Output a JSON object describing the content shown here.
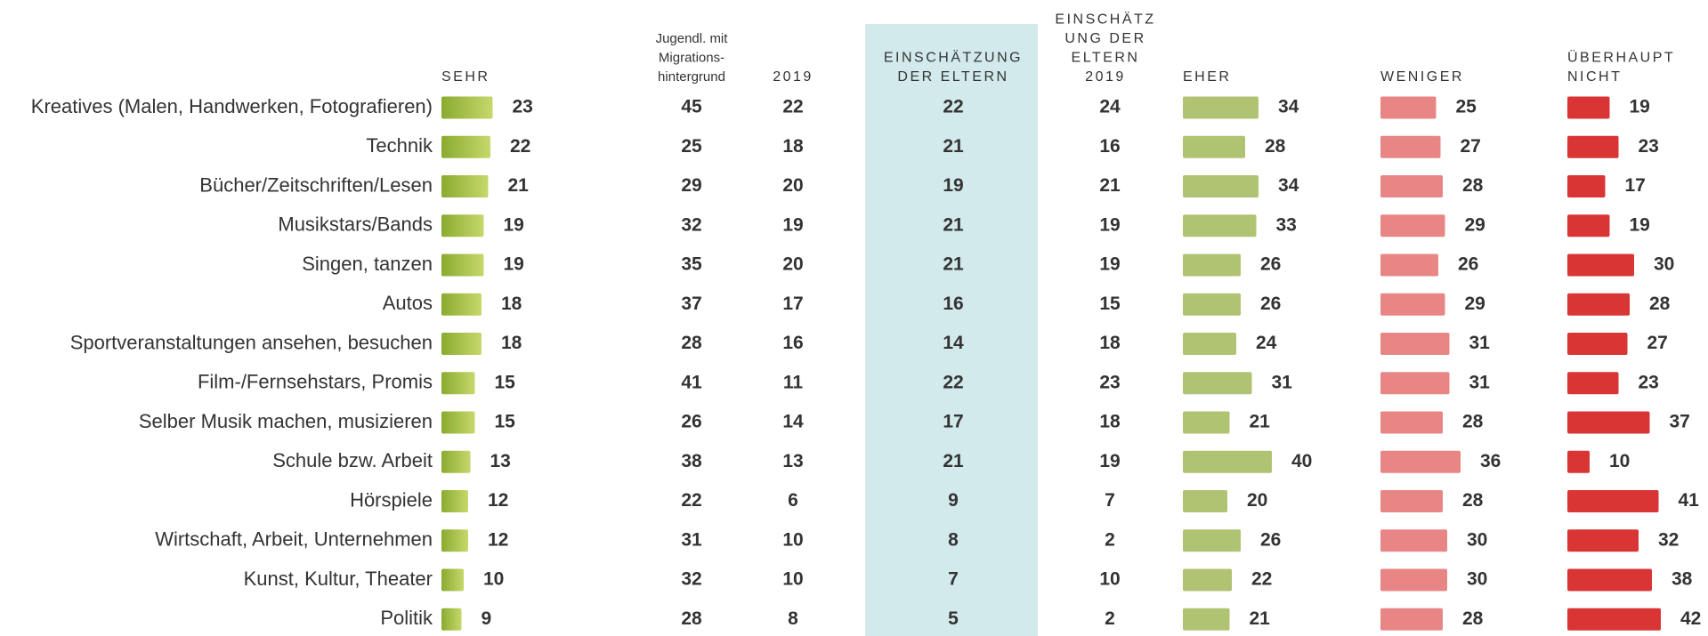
{
  "chart_data": {
    "type": "bar-table",
    "categories": [
      "Kreatives (Malen, Handwerken, Fotografieren)",
      "Technik",
      "Bücher/Zeitschriften/Lesen",
      "Musikstars/Bands",
      "Singen, tanzen",
      "Autos",
      "Sportveranstaltungen ansehen, besuchen",
      "Film-/Fernsehstars, Promis",
      "Selber Musik machen, musizieren",
      "Schule bzw. Arbeit",
      "Hörspiele",
      "Wirtschaft, Arbeit, Unternehmen",
      "Kunst, Kultur, Theater",
      "Politik"
    ],
    "columns": [
      {
        "header": [
          "SEHR"
        ],
        "color": [
          "#8aab2f",
          "#c6d86c"
        ],
        "values": [
          23,
          22,
          21,
          19,
          19,
          18,
          18,
          15,
          15,
          13,
          12,
          12,
          10,
          9
        ]
      },
      {
        "header": [
          "Jugendl. mit",
          "Migrations-",
          "hintergrund"
        ],
        "values": [
          45,
          25,
          29,
          32,
          35,
          37,
          28,
          41,
          26,
          38,
          22,
          31,
          32,
          28
        ]
      },
      {
        "header": [
          "2019"
        ],
        "values": [
          22,
          18,
          20,
          19,
          20,
          17,
          16,
          11,
          14,
          13,
          6,
          10,
          10,
          8
        ]
      },
      {
        "header": [
          "EINSCHÄTZUNG",
          "DER ELTERN"
        ],
        "highlight": "#d3eaec",
        "values": [
          22,
          21,
          19,
          21,
          21,
          16,
          14,
          22,
          17,
          21,
          9,
          8,
          7,
          5
        ]
      },
      {
        "header": [
          "EINSCHÄTZ",
          "UNG DER",
          "ELTERN",
          "2019"
        ],
        "values": [
          24,
          16,
          21,
          19,
          19,
          15,
          18,
          23,
          18,
          19,
          7,
          2,
          10,
          2
        ]
      },
      {
        "header": [
          "EHER"
        ],
        "color": "#b0c373",
        "values": [
          34,
          28,
          34,
          33,
          26,
          26,
          24,
          31,
          21,
          40,
          20,
          26,
          22,
          21
        ]
      },
      {
        "header": [
          "WENIGER"
        ],
        "color": "#e88585",
        "values": [
          25,
          27,
          28,
          29,
          26,
          29,
          31,
          31,
          28,
          36,
          28,
          30,
          30,
          28
        ]
      },
      {
        "header": [
          "ÜBERHAUPT",
          "NICHT"
        ],
        "color": "#d93535",
        "values": [
          19,
          23,
          17,
          19,
          30,
          28,
          27,
          23,
          37,
          10,
          41,
          32,
          38,
          42
        ]
      }
    ]
  }
}
